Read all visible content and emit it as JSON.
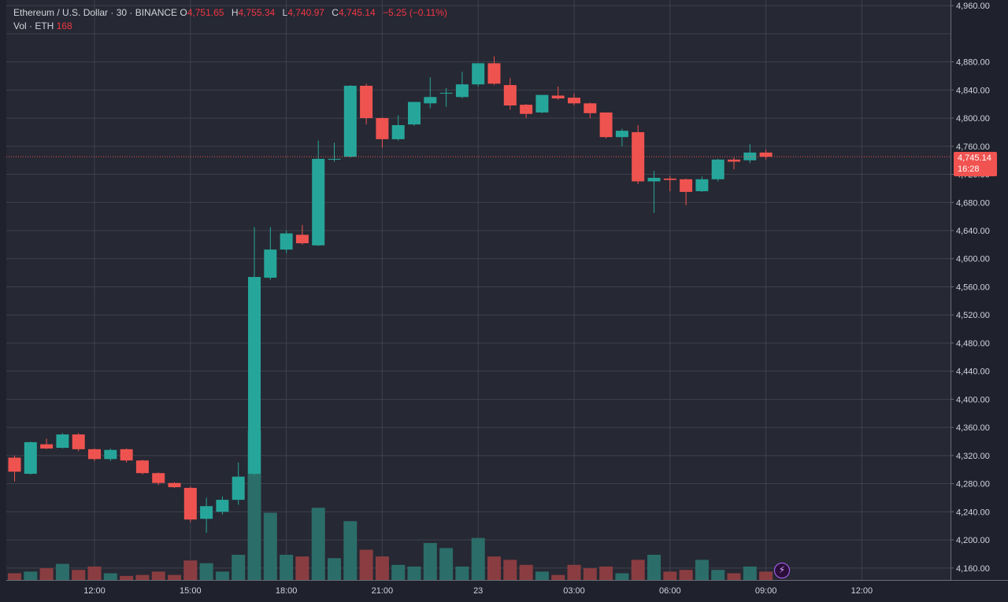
{
  "legend": {
    "symbol": "Ethereum / U.S. Dollar · 30 · BINANCE",
    "o_label": "O",
    "o_value": "4,751.65",
    "h_label": "H",
    "h_value": "4,755.34",
    "l_label": "L",
    "l_value": "4,740.97",
    "c_label": "C",
    "c_value": "4,745.14",
    "change": "−5.25 (−0.11%)",
    "vol_label": "Vol · ETH",
    "vol_value": "168"
  },
  "price_tag": {
    "price": "4,745.14",
    "countdown": "16:28"
  },
  "badge": {
    "icon": "lightning-icon",
    "glyph": "⚡"
  },
  "colors": {
    "up": "#26a69a",
    "down": "#ef5350",
    "up_volume": "#2b6d69",
    "down_volume": "#8a3d41",
    "background": "#262833",
    "grid": "#3f424e",
    "axis_text": "#d1d4dc"
  },
  "chart_data": {
    "type": "candlestick",
    "instrument": "Ethereum / U.S. Dollar",
    "interval": "30",
    "exchange": "BINANCE",
    "last_price": 4745.14,
    "x_ticks": [
      {
        "label": "12:00",
        "index": 5
      },
      {
        "label": "15:00",
        "index": 11
      },
      {
        "label": "18:00",
        "index": 17
      },
      {
        "label": "21:00",
        "index": 23
      },
      {
        "label": "23",
        "index": 29
      },
      {
        "label": "03:00",
        "index": 35
      },
      {
        "label": "06:00",
        "index": 41
      },
      {
        "label": "09:00",
        "index": 47
      },
      {
        "label": "12:00",
        "index": 53
      }
    ],
    "y_ticks": [
      4160,
      4200,
      4240,
      4280,
      4320,
      4360,
      4400,
      4440,
      4480,
      4520,
      4560,
      4600,
      4640,
      4680,
      4720,
      4760,
      4800,
      4840,
      4880,
      4920,
      4960
    ],
    "y_tick_labels": [
      "4,160.00",
      "4,200.00",
      "4,240.00",
      "4,280.00",
      "4,320.00",
      "4,360.00",
      "4,400.00",
      "4,440.00",
      "4,480.00",
      "4,520.00",
      "4,560.00",
      "4,600.00",
      "4,640.00",
      "4,680.00",
      "4,720.00",
      "4,760.00",
      "4,800.00",
      "4,840.00",
      "4,880.00",
      "4,960.00"
    ],
    "y_tick_values": [
      4160,
      4200,
      4240,
      4280,
      4320,
      4360,
      4400,
      4440,
      4480,
      4520,
      4560,
      4600,
      4640,
      4680,
      4720,
      4760,
      4800,
      4840,
      4880,
      4960
    ],
    "ylim": [
      4143,
      4968
    ],
    "candles": [
      {
        "o": 4317,
        "h": 4320,
        "l": 4283,
        "c": 4297,
        "v": 20
      },
      {
        "o": 4294,
        "h": 4340,
        "l": 4293,
        "c": 4339,
        "v": 25
      },
      {
        "o": 4336,
        "h": 4344,
        "l": 4329,
        "c": 4330,
        "v": 35
      },
      {
        "o": 4331,
        "h": 4352,
        "l": 4330,
        "c": 4350,
        "v": 48
      },
      {
        "o": 4350,
        "h": 4352,
        "l": 4326,
        "c": 4329,
        "v": 30
      },
      {
        "o": 4329,
        "h": 4330,
        "l": 4312,
        "c": 4315,
        "v": 40
      },
      {
        "o": 4315,
        "h": 4330,
        "l": 4312,
        "c": 4328,
        "v": 20
      },
      {
        "o": 4329,
        "h": 4330,
        "l": 4310,
        "c": 4313,
        "v": 12
      },
      {
        "o": 4313,
        "h": 4314,
        "l": 4293,
        "c": 4295,
        "v": 15
      },
      {
        "o": 4295,
        "h": 4296,
        "l": 4278,
        "c": 4281,
        "v": 25
      },
      {
        "o": 4281,
        "h": 4282,
        "l": 4274,
        "c": 4275,
        "v": 15
      },
      {
        "o": 4274,
        "h": 4276,
        "l": 4225,
        "c": 4229,
        "v": 58
      },
      {
        "o": 4230,
        "h": 4260,
        "l": 4210,
        "c": 4248,
        "v": 50
      },
      {
        "o": 4240,
        "h": 4262,
        "l": 4236,
        "c": 4257,
        "v": 25
      },
      {
        "o": 4257,
        "h": 4310,
        "l": 4250,
        "c": 4290,
        "v": 75
      },
      {
        "o": 4294,
        "h": 4645,
        "l": 4292,
        "c": 4574,
        "v": 445
      },
      {
        "o": 4573,
        "h": 4645,
        "l": 4570,
        "c": 4613,
        "v": 200
      },
      {
        "o": 4613,
        "h": 4640,
        "l": 4608,
        "c": 4636,
        "v": 75
      },
      {
        "o": 4634,
        "h": 4648,
        "l": 4620,
        "c": 4622,
        "v": 70
      },
      {
        "o": 4619,
        "h": 4768,
        "l": 4618,
        "c": 4742,
        "v": 215
      },
      {
        "o": 4742,
        "h": 4765,
        "l": 4738,
        "c": 4742,
        "v": 65
      },
      {
        "o": 4745,
        "h": 4847,
        "l": 4744,
        "c": 4846,
        "v": 175
      },
      {
        "o": 4846,
        "h": 4849,
        "l": 4791,
        "c": 4800,
        "v": 90
      },
      {
        "o": 4800,
        "h": 4801,
        "l": 4758,
        "c": 4770,
        "v": 70
      },
      {
        "o": 4770,
        "h": 4804,
        "l": 4768,
        "c": 4790,
        "v": 45
      },
      {
        "o": 4791,
        "h": 4823,
        "l": 4789,
        "c": 4823,
        "v": 40
      },
      {
        "o": 4821,
        "h": 4858,
        "l": 4814,
        "c": 4830,
        "v": 110
      },
      {
        "o": 4836,
        "h": 4843,
        "l": 4816,
        "c": 4836,
        "v": 95
      },
      {
        "o": 4830,
        "h": 4866,
        "l": 4828,
        "c": 4848,
        "v": 40
      },
      {
        "o": 4848,
        "h": 4878,
        "l": 4845,
        "c": 4878,
        "v": 125
      },
      {
        "o": 4878,
        "h": 4888,
        "l": 4847,
        "c": 4849,
        "v": 70
      },
      {
        "o": 4847,
        "h": 4857,
        "l": 4812,
        "c": 4818,
        "v": 60
      },
      {
        "o": 4819,
        "h": 4820,
        "l": 4800,
        "c": 4806,
        "v": 45
      },
      {
        "o": 4808,
        "h": 4833,
        "l": 4807,
        "c": 4833,
        "v": 25
      },
      {
        "o": 4832,
        "h": 4845,
        "l": 4826,
        "c": 4828,
        "v": 15
      },
      {
        "o": 4829,
        "h": 4835,
        "l": 4818,
        "c": 4821,
        "v": 45
      },
      {
        "o": 4821,
        "h": 4822,
        "l": 4800,
        "c": 4807,
        "v": 35
      },
      {
        "o": 4808,
        "h": 4808,
        "l": 4771,
        "c": 4773,
        "v": 40
      },
      {
        "o": 4773,
        "h": 4785,
        "l": 4760,
        "c": 4782,
        "v": 20
      },
      {
        "o": 4780,
        "h": 4790,
        "l": 4706,
        "c": 4710,
        "v": 60
      },
      {
        "o": 4710,
        "h": 4725,
        "l": 4665,
        "c": 4715,
        "v": 75
      },
      {
        "o": 4714,
        "h": 4718,
        "l": 4696,
        "c": 4712,
        "v": 25
      },
      {
        "o": 4713,
        "h": 4714,
        "l": 4676,
        "c": 4695,
        "v": 30
      },
      {
        "o": 4696,
        "h": 4717,
        "l": 4695,
        "c": 4713,
        "v": 60
      },
      {
        "o": 4713,
        "h": 4742,
        "l": 4710,
        "c": 4741,
        "v": 30
      },
      {
        "o": 4741,
        "h": 4744,
        "l": 4727,
        "c": 4738,
        "v": 20
      },
      {
        "o": 4740,
        "h": 4763,
        "l": 4736,
        "c": 4751,
        "v": 40
      },
      {
        "o": 4751,
        "h": 4755,
        "l": 4741,
        "c": 4745,
        "v": 25
      }
    ],
    "x_labels": [
      "12:00",
      "15:00",
      "18:00",
      "21:00",
      "23",
      "03:00",
      "06:00",
      "09:00",
      "12:00"
    ]
  }
}
